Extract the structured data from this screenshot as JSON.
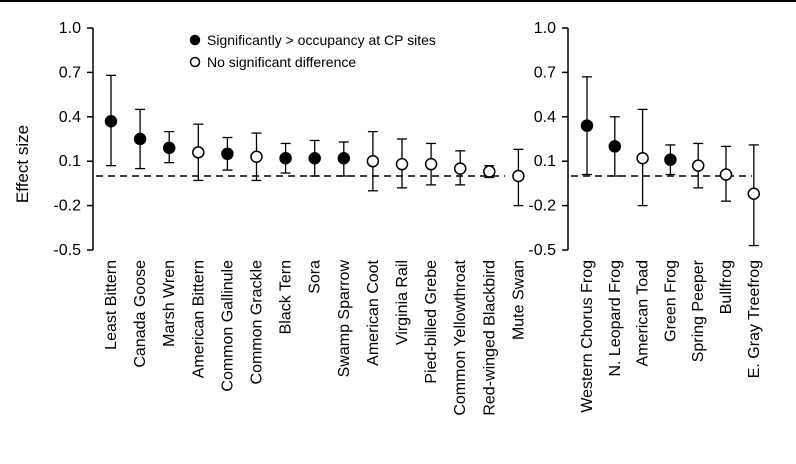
{
  "colors": {
    "ink": "#000000",
    "open_fill": "#ffffff"
  },
  "legend": {
    "significant_label": "Significantly > occupancy at CP sites",
    "nonsignificant_label": "No significant difference",
    "placement": "top-center of left panel"
  },
  "chart_data": [
    {
      "type": "scatter",
      "subtype": "point-with-error-bars",
      "title": "",
      "ylabel": "Effect size",
      "xlabel": "",
      "ylim": [
        -0.5,
        1.0
      ],
      "yticks": [
        -0.5,
        -0.2,
        0.1,
        0.4,
        0.7,
        1.0
      ],
      "ytick_labels": [
        "-0.5",
        "-0.2",
        "0.1",
        "0.4",
        "0.7",
        "1.0"
      ],
      "reference_line": 0.0,
      "grid": false,
      "categories": [
        "Least Bittern",
        "Canada Goose",
        "Marsh Wren",
        "American Bittern",
        "Common Gallinule",
        "Common Grackle",
        "Black Tern",
        "Sora",
        "Swamp Sparrow",
        "American Coot",
        "Virginia Rail",
        "Pied-billed Grebe",
        "Common Yellowthroat",
        "Red-winged Blackbird",
        "Mute Swan"
      ],
      "values": [
        0.37,
        0.25,
        0.19,
        0.16,
        0.15,
        0.13,
        0.12,
        0.12,
        0.12,
        0.1,
        0.08,
        0.08,
        0.05,
        0.03,
        0.0
      ],
      "lower": [
        0.07,
        0.05,
        0.09,
        -0.03,
        0.04,
        -0.03,
        0.02,
        0.0,
        0.0,
        -0.1,
        -0.08,
        -0.06,
        -0.06,
        -0.01,
        -0.2
      ],
      "upper": [
        0.68,
        0.45,
        0.3,
        0.35,
        0.26,
        0.29,
        0.22,
        0.24,
        0.23,
        0.3,
        0.25,
        0.22,
        0.17,
        0.07,
        0.18
      ],
      "significant": [
        true,
        true,
        true,
        false,
        true,
        false,
        true,
        true,
        true,
        false,
        false,
        false,
        false,
        false,
        false
      ]
    },
    {
      "type": "scatter",
      "subtype": "point-with-error-bars",
      "title": "",
      "ylabel": "",
      "xlabel": "",
      "ylim": [
        -0.5,
        1.0
      ],
      "yticks": [
        -0.5,
        -0.2,
        0.1,
        0.4,
        0.7,
        1.0
      ],
      "ytick_labels": [
        "-0.5",
        "-0.2",
        "0.1",
        "0.4",
        "0.7",
        "1.0"
      ],
      "reference_line": 0.0,
      "grid": false,
      "categories": [
        "Western Chorus Frog",
        "N. Leopard Frog",
        "American Toad",
        "Green Frog",
        "Spring Peeper",
        "Bullfrog",
        "E. Gray Treefrog"
      ],
      "values": [
        0.34,
        0.2,
        0.12,
        0.11,
        0.07,
        0.01,
        -0.12
      ],
      "lower": [
        0.01,
        0.0,
        -0.2,
        0.01,
        -0.08,
        -0.17,
        -0.47
      ],
      "upper": [
        0.67,
        0.4,
        0.45,
        0.21,
        0.22,
        0.2,
        0.21
      ],
      "significant": [
        true,
        true,
        false,
        true,
        false,
        false,
        false
      ]
    }
  ]
}
